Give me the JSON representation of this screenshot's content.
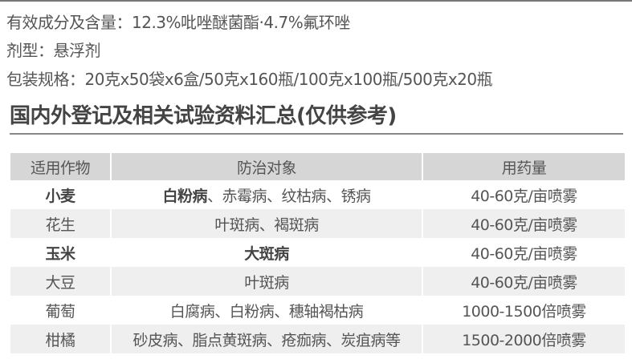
{
  "info": {
    "ingredients": "有效成分及含量：12.3%吡唑醚菌酯·4.7%氟环唑",
    "formulation": "剂型：悬浮剂",
    "packaging": "包装规格：20克x50袋x6盒/50克x160瓶/100克x100瓶/500克x20瓶"
  },
  "section_title": "国内外登记及相关试验资料汇总(仅供参考)",
  "table": {
    "headers": [
      "适用作物",
      "防治对象",
      "用药量"
    ],
    "rows": [
      {
        "crop": "小麦",
        "crop_bold": true,
        "target_bold": "白粉病",
        "target": "、赤霉病、纹枯病、锈病",
        "dosage": "40-60克/亩喷雾"
      },
      {
        "crop": "花生",
        "crop_bold": false,
        "target_bold": "",
        "target": "叶斑病、褐斑病",
        "dosage": "40-60克/亩喷雾"
      },
      {
        "crop": "玉米",
        "crop_bold": true,
        "target_bold": "大斑病",
        "target": "",
        "dosage": "40-60克/亩喷雾"
      },
      {
        "crop": "大豆",
        "crop_bold": false,
        "target_bold": "",
        "target": "叶斑病",
        "dosage": "40-60克/亩喷雾"
      },
      {
        "crop": "葡萄",
        "crop_bold": false,
        "target_bold": "",
        "target": "白腐病、白粉病、穗轴褐枯病",
        "dosage": "1000-1500倍喷雾"
      },
      {
        "crop": "柑橘",
        "crop_bold": false,
        "target_bold": "",
        "target": "砂皮病、脂点黄斑病、疮痂病、炭疽病等",
        "dosage": "1500-2000倍喷雾"
      }
    ]
  }
}
